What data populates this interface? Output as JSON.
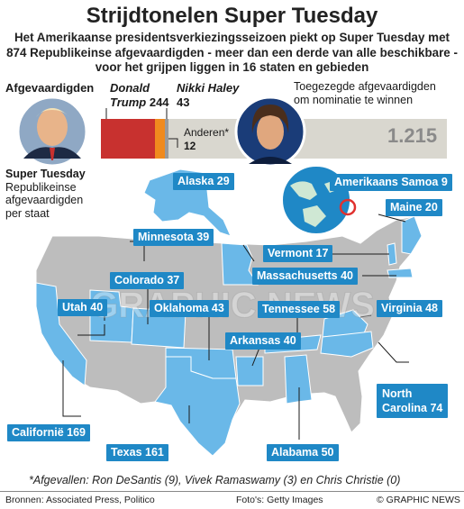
{
  "header": {
    "title": "Strijdtonelen Super Tuesday",
    "subtitle_lines": [
      "Het Amerikaanse presidentsverkiezingsseizoen piekt op Super Tuesday met",
      "874 Republikeinse afgevaardigden - meer dan een derde van alle beschikbare -",
      "voor het grijpen liggen in 16 staten en gebieden"
    ]
  },
  "delegates": {
    "label": "Afgevaardigden",
    "required_label_lines": [
      "Toegezegde afgevaardigden",
      "om nominatie te winnen"
    ],
    "required_value": "1.215",
    "trump_first": "Donald",
    "trump_last": "Trump",
    "trump_value": "244",
    "haley_name": "Nikki Haley",
    "haley_value": "43",
    "others_label": "Anderen*",
    "others_value": "12",
    "colors": {
      "trump": "#c8312f",
      "haley": "#f08a1e",
      "others": "#9a9a9a",
      "remaining": "#d9d7cf"
    }
  },
  "legend": {
    "title": "Super Tuesday",
    "desc_lines": [
      "Republikeinse",
      "afgevaardigden",
      "per staat"
    ]
  },
  "states": [
    {
      "name": "Alaska",
      "value": "29"
    },
    {
      "name": "Amerikaans Samoa",
      "value": "9"
    },
    {
      "name": "Maine",
      "value": "20"
    },
    {
      "name": "Minnesota",
      "value": "39"
    },
    {
      "name": "Vermont",
      "value": "17"
    },
    {
      "name": "Colorado",
      "value": "37"
    },
    {
      "name": "Massachusetts",
      "value": "40"
    },
    {
      "name": "Utah",
      "value": "40"
    },
    {
      "name": "Oklahoma",
      "value": "43"
    },
    {
      "name": "Tennessee",
      "value": "58"
    },
    {
      "name": "Virginia",
      "value": "48"
    },
    {
      "name": "Arkansas",
      "value": "40"
    },
    {
      "name": "North Carolina",
      "value": "74"
    },
    {
      "name": "Californië",
      "value": "169"
    },
    {
      "name": "Texas",
      "value": "161"
    },
    {
      "name": "Alabama",
      "value": "50"
    }
  ],
  "state_label_lines": {
    "north_carolina": [
      "North",
      "Carolina 74"
    ]
  },
  "colors": {
    "highlight": "#6ab8e8",
    "land": "#bdbdbd",
    "label_box": "#1f88c6"
  },
  "footnote": "*Afgevallen: Ron DeSantis (9), Vivek Ramaswamy (3) en Chris Christie (0)",
  "footer": {
    "sources": "Bronnen: Associated Press, Politico",
    "photos": "Foto's: Getty Images",
    "credit": "© GRAPHIC NEWS"
  },
  "watermark": "GRAPHIC NEWS"
}
